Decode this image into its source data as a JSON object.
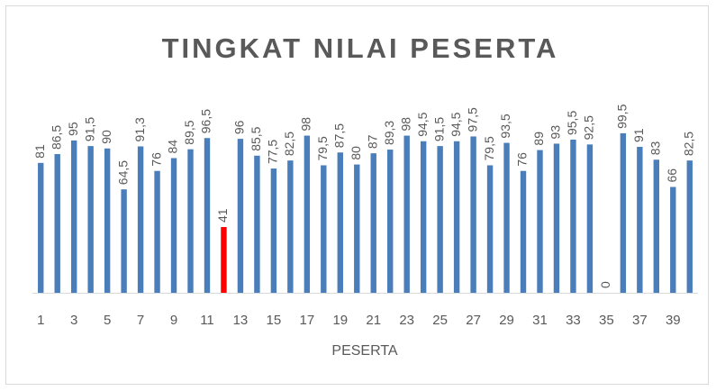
{
  "chart_data": {
    "type": "bar",
    "title": "TINGKAT NILAI PESERTA",
    "x_label": "PESERTA",
    "categories": [
      "1",
      null,
      "3",
      null,
      "5",
      null,
      "7",
      null,
      "9",
      null,
      "11",
      null,
      "13",
      null,
      "15",
      null,
      "17",
      null,
      "19",
      null,
      "21",
      null,
      "23",
      null,
      "25",
      null,
      "27",
      null,
      "29",
      null,
      "31",
      null,
      "33",
      null,
      "35",
      null,
      "37",
      null,
      "39",
      null
    ],
    "values": [
      81,
      86.5,
      95,
      91.5,
      90,
      64.5,
      91.3,
      76,
      84,
      89.5,
      96.5,
      41,
      96,
      85.5,
      77.5,
      82.5,
      98,
      79.5,
      87.5,
      80,
      87,
      89.3,
      98,
      94.5,
      91.5,
      94.5,
      97.5,
      79.5,
      93.5,
      76,
      89,
      93,
      95.5,
      92.5,
      0,
      99.5,
      91,
      83,
      66,
      82.5
    ],
    "value_labels": [
      "81",
      "86,5",
      "95",
      "91,5",
      "90",
      "64,5",
      "91,3",
      "76",
      "84",
      "89,5",
      "96,5",
      "41",
      "96",
      "85,5",
      "77,5",
      "82,5",
      "98",
      "79,5",
      "87,5",
      "80",
      "87",
      "89,3",
      "98",
      "94,5",
      "91,5",
      "94,5",
      "97,5",
      "79,5",
      "93,5",
      "76",
      "89",
      "93",
      "95,5",
      "92,5",
      "0",
      "99,5",
      "91",
      "83",
      "66",
      "82,5"
    ],
    "colors": [
      "#4a7ebb",
      "#4a7ebb",
      "#4a7ebb",
      "#4a7ebb",
      "#4a7ebb",
      "#4a7ebb",
      "#4a7ebb",
      "#4a7ebb",
      "#4a7ebb",
      "#4a7ebb",
      "#4a7ebb",
      "#ff0000",
      "#4a7ebb",
      "#4a7ebb",
      "#4a7ebb",
      "#4a7ebb",
      "#4a7ebb",
      "#4a7ebb",
      "#4a7ebb",
      "#4a7ebb",
      "#4a7ebb",
      "#4a7ebb",
      "#4a7ebb",
      "#4a7ebb",
      "#4a7ebb",
      "#4a7ebb",
      "#4a7ebb",
      "#4a7ebb",
      "#4a7ebb",
      "#4a7ebb",
      "#4a7ebb",
      "#4a7ebb",
      "#4a7ebb",
      "#4a7ebb",
      "#4a7ebb",
      "#4a7ebb",
      "#4a7ebb",
      "#4a7ebb",
      "#4a7ebb",
      "#4a7ebb"
    ],
    "ylim": [
      0,
      100
    ]
  }
}
